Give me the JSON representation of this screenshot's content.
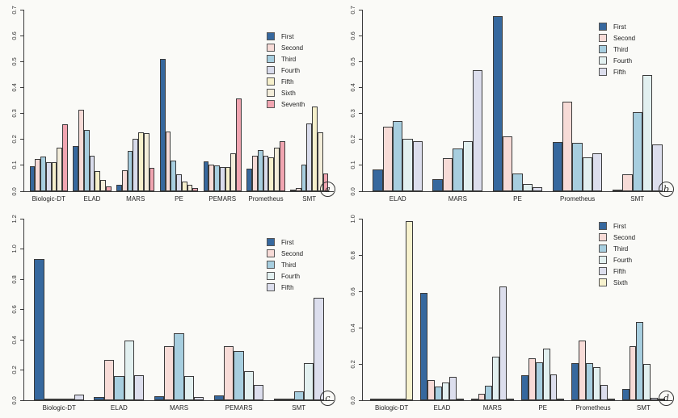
{
  "figure": {
    "background": "#FAFAF7",
    "bar_border_color": "#3a3a3a",
    "panel_letters": [
      "a",
      "b",
      "c",
      "d"
    ]
  },
  "chart_data": [
    {
      "panel": "a",
      "type": "bar",
      "title": "",
      "xlabel": "",
      "ylabel": "",
      "grid": false,
      "legend_position": "upper-right-inside",
      "ylim": [
        0,
        0.7
      ],
      "ytick_labels": [
        "0.0",
        "0.1",
        "0.2",
        "0.3",
        "0.4",
        "0.5",
        "0.6",
        "0.7"
      ],
      "categories": [
        "Biologic-DT",
        "ELAD",
        "MARS",
        "PE",
        "PEMARS",
        "Prometheus",
        "SMT"
      ],
      "series": [
        {
          "name": "First",
          "color": "#36689E",
          "values": [
            0.095,
            0.173,
            0.024,
            0.51,
            0.115,
            0.088,
            0.004
          ]
        },
        {
          "name": "Second",
          "color": "#F7DBD7",
          "values": [
            0.126,
            0.313,
            0.081,
            0.231,
            0.104,
            0.137,
            0.013
          ]
        },
        {
          "name": "Third",
          "color": "#A7CEDF",
          "values": [
            0.133,
            0.237,
            0.155,
            0.119,
            0.101,
            0.158,
            0.103
          ]
        },
        {
          "name": "Fourth",
          "color": "#D9DCEC",
          "values": [
            0.113,
            0.137,
            0.203,
            0.065,
            0.092,
            0.137,
            0.262
          ]
        },
        {
          "name": "Fifth",
          "color": "#F6F0CB",
          "values": [
            0.113,
            0.079,
            0.227,
            0.038,
            0.092,
            0.131,
            0.327
          ]
        },
        {
          "name": "Sixth",
          "color": "#F3EDDA",
          "values": [
            0.168,
            0.044,
            0.225,
            0.025,
            0.146,
            0.168,
            0.228
          ]
        },
        {
          "name": "Seventh",
          "color": "#F1A5B1",
          "values": [
            0.259,
            0.02,
            0.089,
            0.014,
            0.357,
            0.192,
            0.07
          ]
        }
      ]
    },
    {
      "panel": "b",
      "type": "bar",
      "title": "",
      "xlabel": "",
      "ylabel": "",
      "grid": false,
      "legend_position": "upper-right-inside",
      "ylim": [
        0,
        0.7
      ],
      "ytick_labels": [
        "0.0",
        "0.1",
        "0.2",
        "0.3",
        "0.4",
        "0.5",
        "0.6",
        "0.7"
      ],
      "categories": [
        "ELAD",
        "MARS",
        "PE",
        "Prometheus",
        "SMT"
      ],
      "series": [
        {
          "name": "First",
          "color": "#36689E",
          "values": [
            0.085,
            0.047,
            0.674,
            0.19,
            0.004
          ]
        },
        {
          "name": "Second",
          "color": "#F7DBD7",
          "values": [
            0.248,
            0.128,
            0.213,
            0.345,
            0.065
          ]
        },
        {
          "name": "Third",
          "color": "#A7CEDF",
          "values": [
            0.272,
            0.165,
            0.069,
            0.187,
            0.305
          ]
        },
        {
          "name": "Fourth",
          "color": "#E2F0F0",
          "values": [
            0.203,
            0.192,
            0.028,
            0.13,
            0.447
          ]
        },
        {
          "name": "Fifth",
          "color": "#DCDEED",
          "values": [
            0.192,
            0.468,
            0.015,
            0.146,
            0.18
          ]
        }
      ]
    },
    {
      "panel": "c",
      "type": "bar",
      "title": "",
      "xlabel": "",
      "ylabel": "",
      "grid": false,
      "legend_position": "upper-right-inside",
      "ylim": [
        0,
        1.2
      ],
      "ytick_labels": [
        "0.0",
        "0.2",
        "0.4",
        "0.6",
        "0.8",
        "1.0",
        "1.2"
      ],
      "categories": [
        "Biologic-DT",
        "ELAD",
        "MARS",
        "PEMARS",
        "SMT"
      ],
      "series": [
        {
          "name": "First",
          "color": "#36689E",
          "values": [
            0.935,
            0.02,
            0.025,
            0.03,
            0.003
          ]
        },
        {
          "name": "Second",
          "color": "#F7DBD7",
          "values": [
            0.01,
            0.265,
            0.355,
            0.36,
            0.013
          ]
        },
        {
          "name": "Third",
          "color": "#A7CEDF",
          "values": [
            0.01,
            0.16,
            0.445,
            0.325,
            0.06
          ]
        },
        {
          "name": "Fourth",
          "color": "#E2F0F0",
          "values": [
            0.01,
            0.395,
            0.16,
            0.19,
            0.247
          ]
        },
        {
          "name": "Fifth",
          "color": "#DCDEED",
          "values": [
            0.04,
            0.165,
            0.02,
            0.1,
            0.68
          ]
        }
      ]
    },
    {
      "panel": "d",
      "type": "bar",
      "title": "",
      "xlabel": "",
      "ylabel": "",
      "grid": false,
      "legend_position": "upper-right-inside",
      "ylim": [
        0,
        1.0
      ],
      "ytick_labels": [
        "0.0",
        "0.2",
        "0.4",
        "0.6",
        "0.8",
        "1.0"
      ],
      "categories": [
        "Biologic-DT",
        "ELAD",
        "MARS",
        "PE",
        "Prometheus",
        "SMT"
      ],
      "series": [
        {
          "name": "First",
          "color": "#36689E",
          "values": [
            0.003,
            0.59,
            0.01,
            0.138,
            0.205,
            0.063
          ]
        },
        {
          "name": "Second",
          "color": "#F7DBD7",
          "values": [
            0.003,
            0.112,
            0.035,
            0.23,
            0.327,
            0.297
          ]
        },
        {
          "name": "Third",
          "color": "#A7CEDF",
          "values": [
            0.003,
            0.075,
            0.08,
            0.208,
            0.206,
            0.43
          ]
        },
        {
          "name": "Fourth",
          "color": "#E2F0F0",
          "values": [
            0.004,
            0.098,
            0.238,
            0.283,
            0.182,
            0.199
          ]
        },
        {
          "name": "Fifth",
          "color": "#DCDEED",
          "values": [
            0.008,
            0.128,
            0.628,
            0.143,
            0.085,
            0.013
          ]
        },
        {
          "name": "Sixth",
          "color": "#F7F2CE",
          "values": [
            0.985,
            0.005,
            0.008,
            0.003,
            0.003,
            0.002
          ]
        }
      ]
    }
  ]
}
